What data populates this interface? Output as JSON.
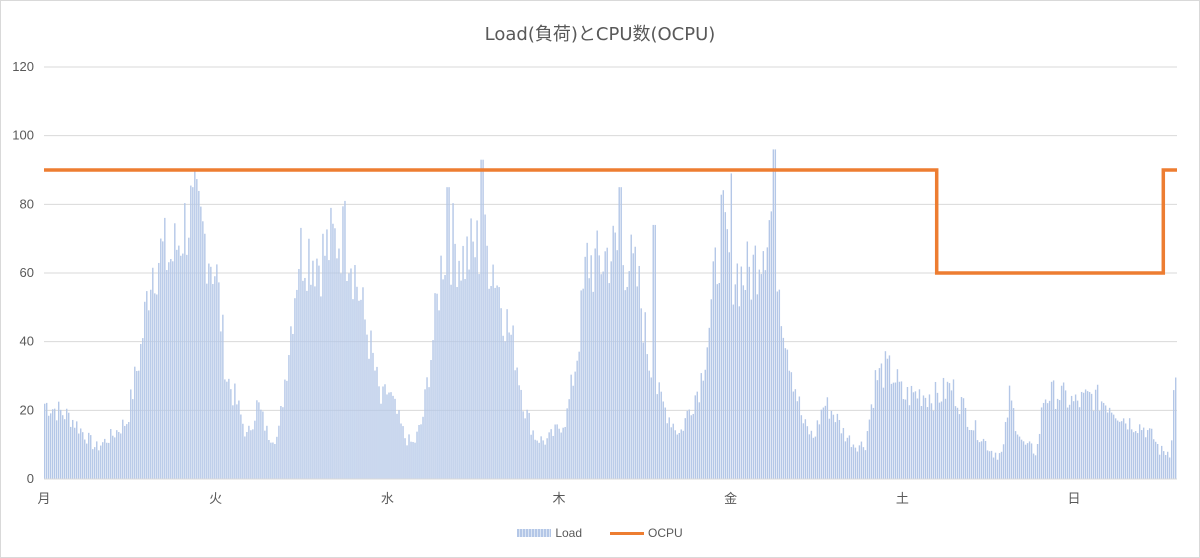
{
  "chart_data": {
    "type": "bar+line",
    "title": "Load(負荷)とCPU数(OCPU)",
    "ylim": [
      0,
      120
    ],
    "yticks": [
      0,
      20,
      40,
      60,
      80,
      100,
      120
    ],
    "categories": [
      "月",
      "火",
      "水",
      "木",
      "金",
      "土",
      "日"
    ],
    "grid": true,
    "legend_position": "bottom",
    "series": [
      {
        "name": "Load",
        "type": "bar",
        "color": "#b4c7e7",
        "profile": [
          [
            0.0,
            22
          ],
          [
            0.15,
            18
          ],
          [
            0.3,
            9
          ],
          [
            0.4,
            13
          ],
          [
            0.48,
            17
          ],
          [
            0.56,
            38
          ],
          [
            0.62,
            62
          ],
          [
            0.68,
            66
          ],
          [
            0.74,
            64
          ],
          [
            0.8,
            72
          ],
          [
            0.86,
            79
          ],
          [
            0.9,
            74
          ],
          [
            0.95,
            68
          ],
          [
            1.0,
            60
          ],
          [
            1.06,
            30
          ],
          [
            1.12,
            22
          ],
          [
            1.18,
            12
          ],
          [
            1.24,
            22
          ],
          [
            1.3,
            13
          ],
          [
            1.36,
            12
          ],
          [
            1.42,
            38
          ],
          [
            1.48,
            66
          ],
          [
            1.54,
            67
          ],
          [
            1.6,
            64
          ],
          [
            1.66,
            68
          ],
          [
            1.72,
            71
          ],
          [
            1.78,
            67
          ],
          [
            1.84,
            52
          ],
          [
            1.9,
            38
          ],
          [
            1.96,
            22
          ],
          [
            2.0,
            26
          ],
          [
            2.05,
            19
          ],
          [
            2.1,
            12
          ],
          [
            2.15,
            10
          ],
          [
            2.2,
            17
          ],
          [
            2.26,
            40
          ],
          [
            2.32,
            66
          ],
          [
            2.38,
            69
          ],
          [
            2.44,
            64
          ],
          [
            2.5,
            67
          ],
          [
            2.56,
            68
          ],
          [
            2.62,
            62
          ],
          [
            2.68,
            48
          ],
          [
            2.74,
            37
          ],
          [
            2.8,
            20
          ],
          [
            2.86,
            12
          ],
          [
            2.92,
            11
          ],
          [
            2.98,
            14
          ],
          [
            3.04,
            18
          ],
          [
            3.1,
            36
          ],
          [
            3.16,
            64
          ],
          [
            3.22,
            62
          ],
          [
            3.28,
            66
          ],
          [
            3.34,
            66
          ],
          [
            3.4,
            64
          ],
          [
            3.46,
            56
          ],
          [
            3.52,
            35
          ],
          [
            3.58,
            24
          ],
          [
            3.64,
            18
          ],
          [
            3.7,
            13
          ],
          [
            3.76,
            21
          ],
          [
            3.82,
            28
          ],
          [
            3.88,
            48
          ],
          [
            3.94,
            74
          ],
          [
            4.0,
            62
          ],
          [
            4.06,
            59
          ],
          [
            4.12,
            60
          ],
          [
            4.18,
            70
          ],
          [
            4.24,
            78
          ],
          [
            4.3,
            48
          ],
          [
            4.36,
            30
          ],
          [
            4.42,
            16
          ],
          [
            4.48,
            12
          ],
          [
            4.54,
            22
          ],
          [
            4.6,
            19
          ],
          [
            4.66,
            13
          ],
          [
            4.72,
            10
          ],
          [
            4.78,
            10
          ],
          [
            4.84,
            29
          ],
          [
            4.9,
            32
          ],
          [
            4.95,
            30
          ],
          [
            5.0,
            24
          ],
          [
            5.1,
            25
          ],
          [
            5.2,
            24
          ],
          [
            5.28,
            27
          ],
          [
            5.34,
            22
          ],
          [
            5.4,
            16
          ],
          [
            5.46,
            12
          ],
          [
            5.52,
            8
          ],
          [
            5.58,
            7
          ],
          [
            5.62,
            24
          ],
          [
            5.66,
            16
          ],
          [
            5.7,
            10
          ],
          [
            5.74,
            9
          ],
          [
            5.78,
            8
          ],
          [
            5.82,
            24
          ],
          [
            5.9,
            25
          ],
          [
            6.0,
            22
          ],
          [
            6.1,
            24
          ],
          [
            6.2,
            22
          ],
          [
            6.3,
            17
          ],
          [
            6.4,
            15
          ],
          [
            6.46,
            12
          ],
          [
            6.5,
            8
          ],
          [
            6.56,
            8
          ],
          [
            6.58,
            28
          ]
        ],
        "peaks": [
          [
            0.86,
            85
          ],
          [
            1.75,
            81
          ],
          [
            2.55,
            93
          ],
          [
            3.35,
            85
          ],
          [
            4.0,
            89
          ],
          [
            4.25,
            96
          ],
          [
            3.55,
            74
          ],
          [
            2.35,
            85
          ]
        ]
      },
      {
        "name": "OCPU",
        "type": "line",
        "color": "#ed7d31",
        "points": [
          [
            0,
            90
          ],
          [
            5.2,
            90
          ],
          [
            5.2,
            60
          ],
          [
            6.52,
            60
          ],
          [
            6.52,
            90
          ],
          [
            6.6,
            90
          ]
        ]
      }
    ]
  },
  "legend": {
    "load_label": "Load",
    "ocpu_label": "OCPU"
  }
}
